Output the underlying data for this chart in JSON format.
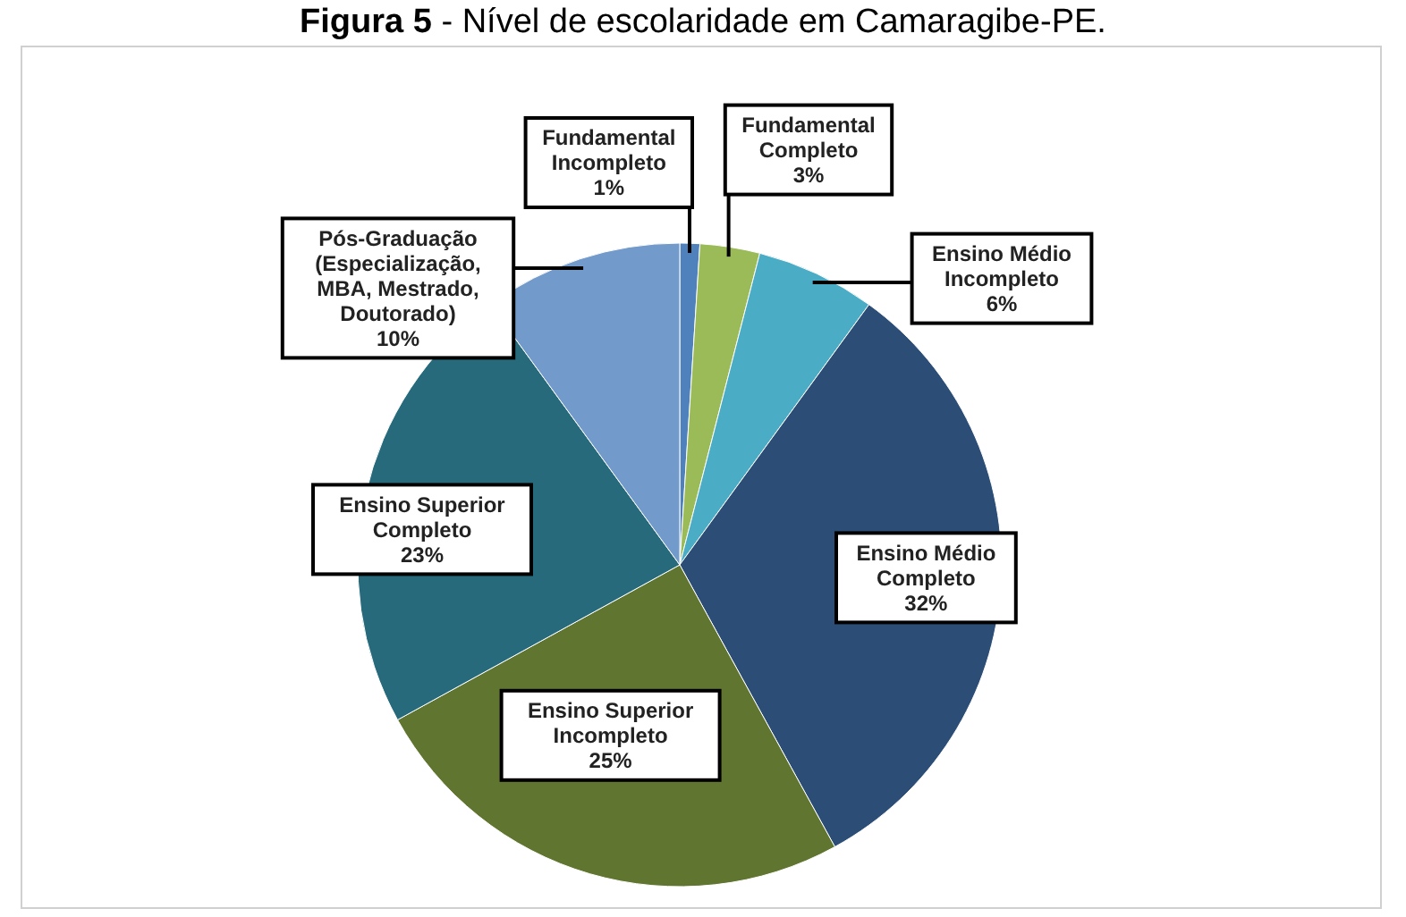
{
  "chart_data": {
    "type": "pie",
    "title": "Figura 5 - Nível de escolaridade em Camaragibe-PE.",
    "categories": [
      "Fundamental Incompleto",
      "Fundamental Completo",
      "Ensino Médio Incompleto",
      "Ensino Médio Completo",
      "Ensino Superior Incompleto",
      "Ensino Superior Completo",
      "Pós-Graduação (Especialização, MBA, Mestrado, Doutorado)"
    ],
    "values": [
      1,
      3,
      6,
      32,
      25,
      23,
      10
    ],
    "value_labels": [
      "1%",
      "3%",
      "6%",
      "32%",
      "25%",
      "23%",
      "10%"
    ],
    "colors": [
      "#4f81bd",
      "#9bbb59",
      "#4bacc6",
      "#2c4d75",
      "#5f7530",
      "#276a7c",
      "#729aca"
    ]
  }
}
